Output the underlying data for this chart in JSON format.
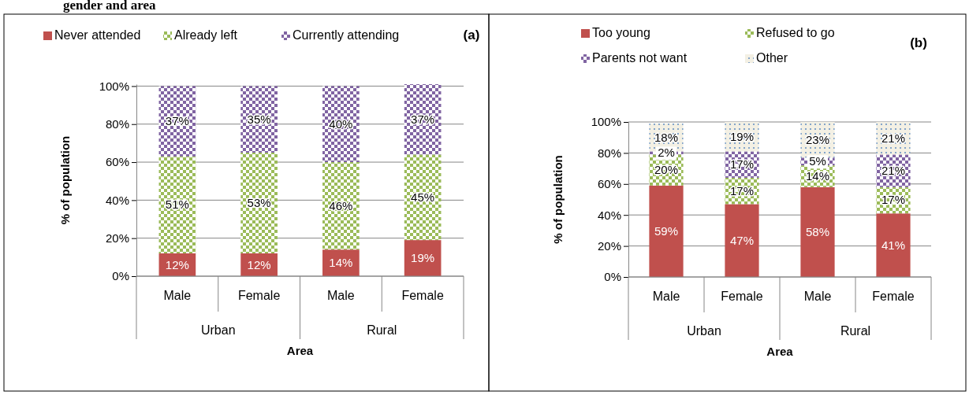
{
  "chart_data": [
    {
      "type": "bar",
      "title": "gender and area",
      "stacked": true,
      "categories": [
        "Male",
        "Female",
        "Male",
        "Female"
      ],
      "xlabel": "Area",
      "ylabel": "% of population",
      "legend": "top",
      "annotations": [
        "(a)",
        "Urban",
        "Rural"
      ],
      "ylim": [
        0,
        101
      ],
      "yticks": [
        {
          "value": 0,
          "label": "0%"
        },
        {
          "value": 20,
          "label": "20%"
        },
        {
          "value": 40,
          "label": "40%"
        },
        {
          "value": 60,
          "label": "60%"
        },
        {
          "value": 80,
          "label": "80%"
        },
        {
          "value": 100,
          "label": "100%"
        }
      ],
      "grid": "y",
      "series": [
        {
          "name": "Never attended",
          "color": "#c0504d",
          "values": [
            12,
            12,
            14,
            19
          ],
          "value_labels": [
            "12%",
            "12%",
            "14%",
            "19%"
          ]
        },
        {
          "name": "Already left",
          "color": "#9bbb59",
          "values": [
            51,
            53,
            46,
            45
          ],
          "value_labels": [
            "51%",
            "53%",
            "46%",
            "45%"
          ]
        },
        {
          "name": "Currently attending",
          "color": "#8064a2",
          "values": [
            37,
            35,
            40,
            37
          ],
          "value_labels": [
            "37%",
            "35%",
            "40%",
            "37%"
          ]
        }
      ]
    },
    {
      "type": "bar",
      "stacked": true,
      "categories": [
        "Male",
        "Female",
        "Male",
        "Female"
      ],
      "xlabel": "Area",
      "ylabel": "% of population",
      "legend": "top",
      "annotations": [
        "(b)",
        "Urban",
        "Rural"
      ],
      "ylim": [
        0,
        100
      ],
      "yticks": [
        {
          "value": 0,
          "label": "0%"
        },
        {
          "value": 20,
          "label": "20%"
        },
        {
          "value": 40,
          "label": "40%"
        },
        {
          "value": 60,
          "label": "60%"
        },
        {
          "value": 80,
          "label": "80%"
        },
        {
          "value": 100,
          "label": "100%"
        }
      ],
      "grid": "y",
      "series": [
        {
          "name": "Too young",
          "color": "#c0504d",
          "values": [
            59,
            47,
            58,
            41
          ],
          "value_labels": [
            "59%",
            "47%",
            "58%",
            "41%"
          ]
        },
        {
          "name": "Refused to go",
          "color": "#9bbb59",
          "values": [
            20,
            17,
            14,
            17
          ],
          "value_labels": [
            "20%",
            "17%",
            "14%",
            "17%"
          ]
        },
        {
          "name": "Parents not want",
          "color": "#8064a2",
          "values": [
            2,
            17,
            5,
            21
          ],
          "value_labels": [
            "2%",
            "17%",
            "5%",
            "21%"
          ]
        },
        {
          "name": "Other",
          "color": "#c6d9f1",
          "values": [
            18,
            19,
            23,
            21
          ],
          "value_labels": [
            "18%",
            "19%",
            "23%",
            "21%"
          ]
        }
      ]
    }
  ]
}
